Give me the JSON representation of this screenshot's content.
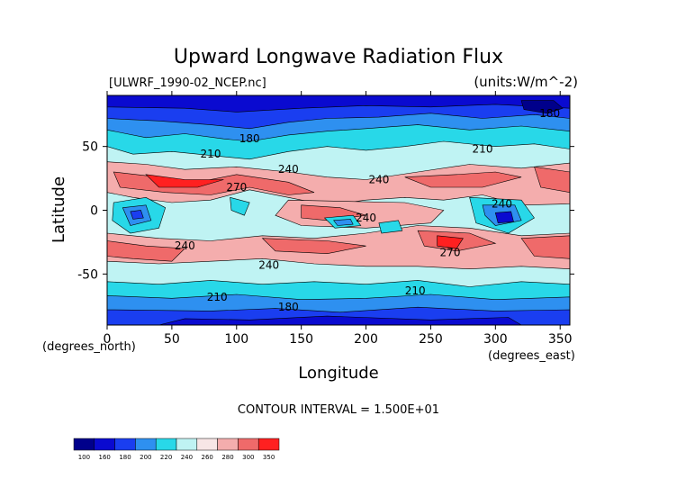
{
  "chart_data": {
    "type": "heatmap",
    "title": "Upward Longwave Radiation Flux",
    "subtitle_left": "[ULWRF_1990-02_NCEP.nc]",
    "subtitle_right": "(units:W/m^-2)",
    "xlabel": "Longitude",
    "ylabel": "Latitude",
    "x_unit_note": "(degrees_east)",
    "y_unit_note": "(degrees_north)",
    "xlim": [
      0,
      357.5
    ],
    "ylim": [
      -90,
      90
    ],
    "x_ticks": [
      "0",
      "50",
      "100",
      "150",
      "200",
      "250",
      "300",
      "350"
    ],
    "y_ticks": [
      "50",
      "0",
      "-50"
    ],
    "contour_interval_text": "CONTOUR INTERVAL = 1.500E+01",
    "contour_labels": [
      {
        "text": "180",
        "lon": 110,
        "lat": 56
      },
      {
        "text": "180",
        "lon": 342,
        "lat": 76
      },
      {
        "text": "210",
        "lon": 80,
        "lat": 44
      },
      {
        "text": "210",
        "lon": 290,
        "lat": 48
      },
      {
        "text": "240",
        "lon": 140,
        "lat": 32
      },
      {
        "text": "240",
        "lon": 210,
        "lat": 24
      },
      {
        "text": "240",
        "lon": 305,
        "lat": 5
      },
      {
        "text": "240",
        "lon": 200,
        "lat": -6
      },
      {
        "text": "240",
        "lon": 60,
        "lat": -28
      },
      {
        "text": "240",
        "lon": 125,
        "lat": -43
      },
      {
        "text": "270",
        "lon": 100,
        "lat": 18
      },
      {
        "text": "270",
        "lon": 265,
        "lat": -33
      },
      {
        "text": "210",
        "lon": 85,
        "lat": -68
      },
      {
        "text": "210",
        "lon": 238,
        "lat": -63
      },
      {
        "text": "180",
        "lon": 140,
        "lat": -76
      }
    ],
    "colorbar": {
      "labels": [
        "100",
        "160",
        "180",
        "200",
        "220",
        "240",
        "260",
        "280",
        "300",
        "350"
      ],
      "colors": [
        "#00008b",
        "#0a0ad0",
        "#1a3ef0",
        "#2e90f0",
        "#28d8e8",
        "#bff3f3",
        "#f7e6e6",
        "#f4adad",
        "#ef6a6a",
        "#ff2020"
      ]
    }
  }
}
